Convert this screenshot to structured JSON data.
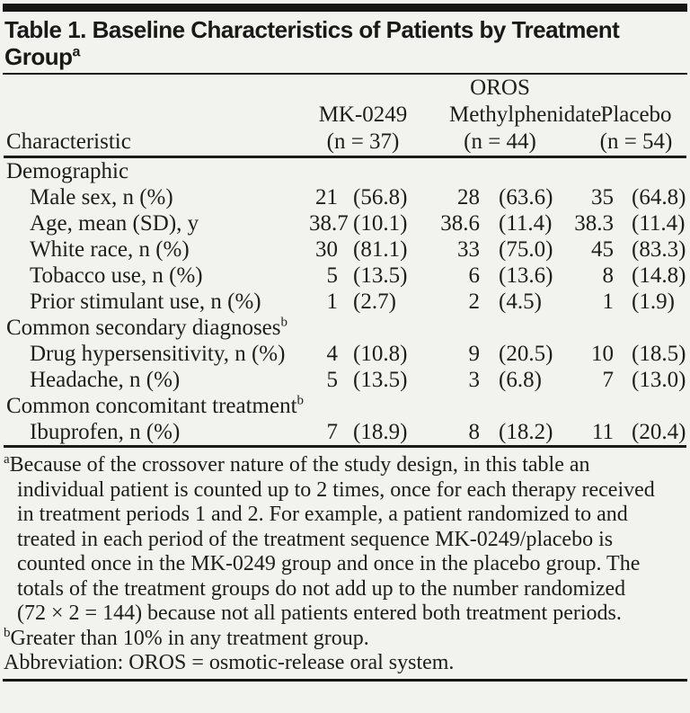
{
  "page": {
    "background": "#f2f2ef",
    "text_color": "#1d1d1b",
    "rule_color": "#1b1b1b"
  },
  "title": {
    "line1": "Table 1. Baseline Characteristics of Patients by Treatment",
    "line2": "Group",
    "superscript": "a"
  },
  "header": {
    "characteristic_label": "Characteristic",
    "groups": [
      {
        "name_top": "",
        "name": "MK-0249",
        "n": "(n = 37)"
      },
      {
        "name_top": "OROS",
        "name": "Methylphenidate",
        "n": "(n = 44)"
      },
      {
        "name_top": "",
        "name": "Placebo",
        "n": "(n = 54)"
      }
    ]
  },
  "rows": [
    {
      "type": "section",
      "label": "Demographic",
      "sup": ""
    },
    {
      "type": "data",
      "label": "Male sex, n (%)",
      "values": [
        [
          "21",
          "(56.8)"
        ],
        [
          "28",
          "(63.6)"
        ],
        [
          "35",
          "(64.8)"
        ]
      ]
    },
    {
      "type": "data",
      "label": "Age, mean (SD), y",
      "values": [
        [
          "38.7",
          "(10.1)"
        ],
        [
          "38.6",
          "(11.4)"
        ],
        [
          "38.3",
          "(11.4)"
        ]
      ]
    },
    {
      "type": "data",
      "label": "White race, n (%)",
      "values": [
        [
          "30",
          "(81.1)"
        ],
        [
          "33",
          "(75.0)"
        ],
        [
          "45",
          "(83.3)"
        ]
      ]
    },
    {
      "type": "data",
      "label": "Tobacco use, n (%)",
      "values": [
        [
          "5",
          "(13.5)"
        ],
        [
          "6",
          "(13.6)"
        ],
        [
          "8",
          "(14.8)"
        ]
      ]
    },
    {
      "type": "data",
      "label": "Prior stimulant use, n (%)",
      "values": [
        [
          "1",
          "(2.7)"
        ],
        [
          "2",
          "(4.5)"
        ],
        [
          "1",
          "(1.9)"
        ]
      ]
    },
    {
      "type": "section",
      "label": "Common secondary diagnoses",
      "sup": "b"
    },
    {
      "type": "data",
      "label": "Drug hypersensitivity, n (%)",
      "values": [
        [
          "4",
          "(10.8)"
        ],
        [
          "9",
          "(20.5)"
        ],
        [
          "10",
          "(18.5)"
        ]
      ]
    },
    {
      "type": "data",
      "label": "Headache, n (%)",
      "values": [
        [
          "5",
          "(13.5)"
        ],
        [
          "3",
          "(6.8)"
        ],
        [
          "7",
          "(13.0)"
        ]
      ]
    },
    {
      "type": "section",
      "label": "Common concomitant treatment",
      "sup": "b"
    },
    {
      "type": "data",
      "label": "Ibuprofen, n (%)",
      "values": [
        [
          "7",
          "(18.9)"
        ],
        [
          "8",
          "(18.2)"
        ],
        [
          "11",
          "(20.4)"
        ]
      ]
    }
  ],
  "footnotes": [
    {
      "marker": "a",
      "text": "Because of the crossover nature of the study design, in this table an individual patient is counted up to 2 times, once for each therapy received in treatment periods 1 and 2. For example, a patient randomized to and treated in each period of the treatment sequence MK-0249/placebo is counted once in the MK-0249 group and once in the placebo group. The totals of the treatment groups do not add up to the number randomized (72 × 2 = 144) because not all patients entered both treatment periods."
    },
    {
      "marker": "b",
      "text": "Greater than 10% in any treatment group."
    },
    {
      "marker": "",
      "text": "Abbreviation: OROS = osmotic-release oral system."
    }
  ]
}
